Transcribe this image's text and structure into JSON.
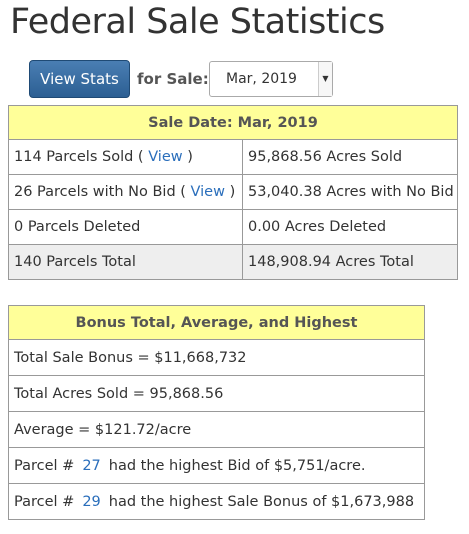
{
  "title": "Federal Sale Statistics",
  "controls": {
    "view_button": "View Stats",
    "for_sale_label": "for Sale:",
    "sale_select_value": "Mar, 2019"
  },
  "sale_stats": {
    "header": "Sale Date: Mar, 2019",
    "sold_label": "114 Parcels Sold (",
    "sold_link": "View",
    "sold_close": ")",
    "acres_sold": "95,868.56 Acres Sold",
    "nobid_label": "26 Parcels with No Bid (",
    "nobid_link": "View",
    "nobid_close": ")",
    "acres_nobid": "53,040.38 Acres with No Bid",
    "deleted": "0 Parcels Deleted",
    "acres_deleted": "0.00 Acres Deleted",
    "total": "140 Parcels Total",
    "acres_total": "148,908.94 Acres Total"
  },
  "bonus": {
    "header": "Bonus Total, Average, and Highest",
    "total_sale_bonus": "Total Sale Bonus = $11,668,732",
    "total_acres_sold": "Total Acres Sold = 95,868.56",
    "average": "Average = $121.72/acre",
    "highest_bid_prefix": "Parcel #",
    "highest_bid_parcel": "27",
    "highest_bid_suffix": "had the highest Bid of $5,751/acre.",
    "highest_bonus_prefix": "Parcel #",
    "highest_bonus_parcel": "29",
    "highest_bonus_suffix": "had the highest Sale Bonus of $1,673,988"
  }
}
